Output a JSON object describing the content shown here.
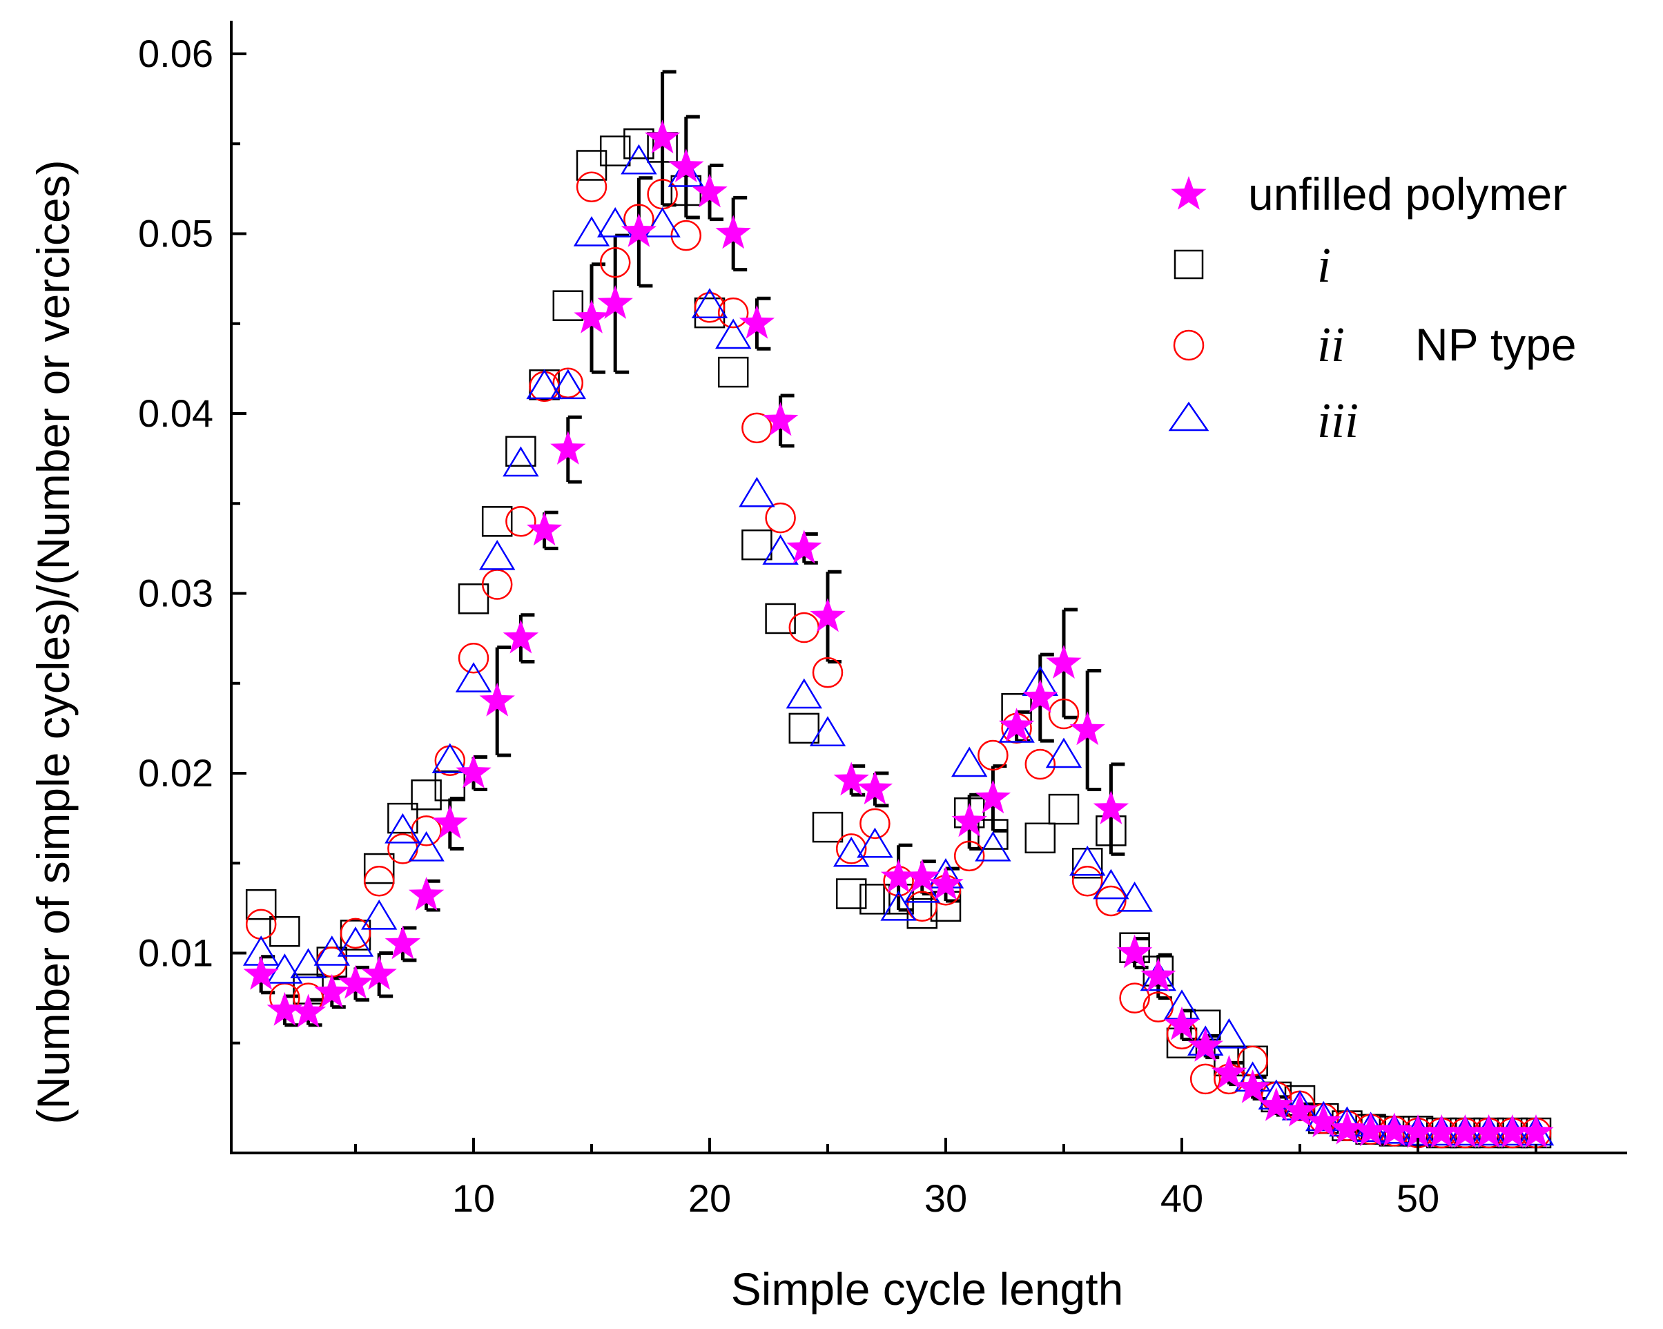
{
  "chart_data": {
    "type": "scatter",
    "title": "",
    "xlabel": "Simple cycle length",
    "ylabel": "(Number of simple cycles)/(Number or vercices)",
    "xlim": [
      0,
      59
    ],
    "ylim": [
      0,
      0.064
    ],
    "x_ticks": [
      10,
      20,
      30,
      40,
      50
    ],
    "x_tick_labels": [
      "10",
      "20",
      "30",
      "40",
      "50"
    ],
    "y_ticks": [
      0.01,
      0.02,
      0.03,
      0.04,
      0.05,
      0.06
    ],
    "y_tick_labels": [
      "0.01",
      "0.02",
      "0.03",
      "0.04",
      "0.05",
      "0.06"
    ],
    "legend": {
      "position": "top-right",
      "group_label": "NP type",
      "entries": [
        {
          "series": "unfilled",
          "label": "unfilled polymer"
        },
        {
          "series": "i",
          "label": "i"
        },
        {
          "series": "ii",
          "label": "ii"
        },
        {
          "series": "iii",
          "label": "iii"
        }
      ]
    },
    "series": [
      {
        "name": "unfilled polymer",
        "key": "unfilled",
        "marker": "star",
        "color": "#ff00ff",
        "x": [
          1,
          2,
          3,
          4,
          5,
          6,
          7,
          8,
          9,
          10,
          11,
          12,
          13,
          14,
          15,
          16,
          17,
          18,
          19,
          20,
          21,
          22,
          23,
          24,
          25,
          26,
          27,
          28,
          29,
          30,
          31,
          32,
          33,
          34,
          35,
          36,
          37,
          38,
          39,
          40,
          41,
          42,
          43,
          44,
          45,
          46,
          47,
          48,
          49,
          50,
          51,
          52,
          53,
          54,
          55
        ],
        "y": [
          0.0088,
          0.0068,
          0.0067,
          0.0078,
          0.0083,
          0.0088,
          0.0105,
          0.0132,
          0.0172,
          0.02,
          0.024,
          0.0275,
          0.0335,
          0.038,
          0.0453,
          0.0461,
          0.0501,
          0.0553,
          0.0537,
          0.0523,
          0.05,
          0.045,
          0.0396,
          0.0325,
          0.0287,
          0.0196,
          0.0191,
          0.0142,
          0.0142,
          0.0138,
          0.0173,
          0.0186,
          0.0226,
          0.0242,
          0.0261,
          0.0224,
          0.018,
          0.01,
          0.0087,
          0.006,
          0.0048,
          0.0033,
          0.0025,
          0.0015,
          0.0012,
          0.0006,
          0.0002,
          0.0001,
          0.0001,
          0.0,
          0.0,
          0.0,
          0.0,
          0.0,
          0.0
        ],
        "error": [
          0.001,
          0.0008,
          0.0007,
          0.0008,
          0.0009,
          0.0012,
          0.0009,
          0.0008,
          0.0014,
          0.0009,
          0.003,
          0.0013,
          0.001,
          0.0018,
          0.003,
          0.0038,
          0.003,
          0.0037,
          0.0028,
          0.0015,
          0.002,
          0.0014,
          0.0014,
          0.0008,
          0.0025,
          0.0008,
          0.0009,
          0.0018,
          0.0009,
          0.0009,
          0.0015,
          0.0018,
          0.0008,
          0.0024,
          0.003,
          0.0033,
          0.0025,
          0.0008,
          0.0012,
          0.0008,
          0.0006,
          0.0006,
          0.0006,
          0.0005,
          0.0004,
          0.0002,
          0.0001,
          0.0,
          0.0,
          0.0,
          0.0,
          0.0,
          0.0,
          0.0,
          0.0
        ]
      },
      {
        "name": "i",
        "key": "i",
        "marker": "square",
        "color": "#000000",
        "x": [
          1,
          2,
          3,
          4,
          5,
          6,
          7,
          8,
          9,
          10,
          11,
          12,
          13,
          14,
          15,
          16,
          17,
          18,
          19,
          20,
          21,
          22,
          23,
          24,
          25,
          26,
          27,
          28,
          29,
          30,
          31,
          32,
          33,
          34,
          35,
          36,
          37,
          38,
          39,
          40,
          41,
          42,
          43,
          44,
          45,
          46,
          47,
          48,
          49,
          50,
          51,
          52,
          53,
          54,
          55
        ],
        "y": [
          0.0127,
          0.0112,
          0.008,
          0.0095,
          0.011,
          0.0147,
          0.0175,
          0.0188,
          0.0193,
          0.0297,
          0.034,
          0.0379,
          0.0416,
          0.046,
          0.0538,
          0.0546,
          0.055,
          0.0548,
          0.0524,
          0.0456,
          0.0423,
          0.0327,
          0.0286,
          0.0225,
          0.017,
          0.0133,
          0.013,
          0.013,
          0.0122,
          0.0126,
          0.0178,
          0.0166,
          0.0236,
          0.0164,
          0.018,
          0.015,
          0.0168,
          0.0103,
          0.009,
          0.005,
          0.006,
          0.004,
          0.004,
          0.002,
          0.0018,
          0.0008,
          0.0004,
          0.0002,
          0.0001,
          0.0001,
          0.0,
          0.0,
          0.0,
          0.0,
          0.0
        ]
      },
      {
        "name": "ii",
        "key": "ii",
        "marker": "circle",
        "color": "#ff0000",
        "x": [
          1,
          2,
          3,
          4,
          5,
          6,
          7,
          8,
          9,
          10,
          11,
          12,
          13,
          14,
          15,
          16,
          17,
          18,
          19,
          20,
          21,
          22,
          23,
          24,
          25,
          26,
          27,
          28,
          29,
          30,
          31,
          32,
          33,
          34,
          35,
          36,
          37,
          38,
          39,
          40,
          41,
          42,
          43,
          44,
          45,
          46,
          47,
          48,
          49,
          50,
          51,
          52,
          53,
          54,
          55
        ],
        "y": [
          0.0116,
          0.0075,
          0.0075,
          0.0095,
          0.0111,
          0.014,
          0.0158,
          0.0168,
          0.0207,
          0.0264,
          0.0305,
          0.034,
          0.0415,
          0.0417,
          0.0526,
          0.0484,
          0.0508,
          0.0522,
          0.0499,
          0.0459,
          0.0456,
          0.0392,
          0.0342,
          0.0281,
          0.0256,
          0.0158,
          0.0172,
          0.014,
          0.0126,
          0.0135,
          0.0154,
          0.021,
          0.0225,
          0.0205,
          0.0233,
          0.014,
          0.0129,
          0.0075,
          0.007,
          0.0055,
          0.003,
          0.003,
          0.004,
          0.002,
          0.0015,
          0.0008,
          0.0004,
          0.0002,
          0.0001,
          0.0,
          0.0,
          0.0,
          0.0,
          0.0,
          0.0
        ]
      },
      {
        "name": "iii",
        "key": "iii",
        "marker": "triangle",
        "color": "#0000ff",
        "x": [
          1,
          2,
          3,
          4,
          5,
          6,
          7,
          8,
          9,
          10,
          11,
          12,
          13,
          14,
          15,
          16,
          17,
          18,
          19,
          20,
          21,
          22,
          23,
          24,
          25,
          26,
          27,
          28,
          29,
          30,
          31,
          32,
          33,
          34,
          35,
          36,
          37,
          38,
          39,
          40,
          41,
          42,
          43,
          44,
          45,
          46,
          47,
          48,
          49,
          50,
          51,
          52,
          53,
          54,
          55
        ],
        "y": [
          0.01,
          0.009,
          0.0093,
          0.01,
          0.0105,
          0.012,
          0.0168,
          0.0158,
          0.0207,
          0.0252,
          0.032,
          0.0372,
          0.0415,
          0.0415,
          0.05,
          0.0505,
          0.054,
          0.0505,
          0.0533,
          0.046,
          0.0443,
          0.0355,
          0.0323,
          0.0243,
          0.0222,
          0.0155,
          0.016,
          0.0125,
          0.0135,
          0.0143,
          0.0205,
          0.0158,
          0.0224,
          0.025,
          0.021,
          0.015,
          0.0137,
          0.013,
          0.0086,
          0.007,
          0.005,
          0.0054,
          0.003,
          0.002,
          0.0014,
          0.0008,
          0.0005,
          0.0002,
          0.0001,
          0.0,
          0.0,
          0.0,
          0.0,
          0.0,
          0.0
        ]
      }
    ]
  }
}
